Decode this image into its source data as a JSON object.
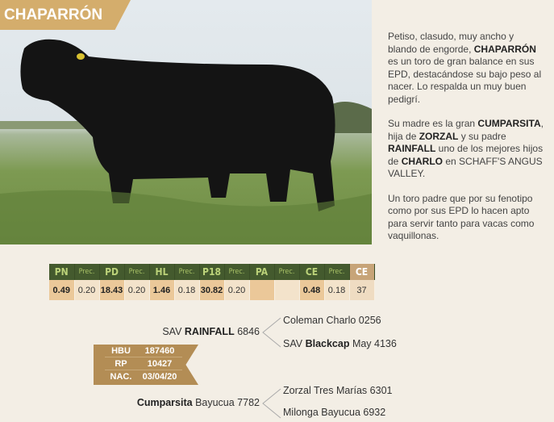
{
  "title": "CHAPARRÓN",
  "photo": {
    "subject": "bull-photo"
  },
  "description": [
    [
      {
        "t": "Petiso, clasudo, muy ancho y blando de engorde, "
      },
      {
        "t": "CHAPARRÓN",
        "b": true
      },
      {
        "t": " es un toro de gran balance en sus EPD, destacándose su bajo peso al nacer. Lo respalda un muy buen pedigrí."
      }
    ],
    [
      {
        "t": "Su madre es la gran "
      },
      {
        "t": "CUMPARSITA",
        "b": true
      },
      {
        "t": ", hija de "
      },
      {
        "t": "ZORZAL",
        "b": true
      },
      {
        "t": " y su padre "
      },
      {
        "t": "RAINFALL",
        "b": true
      },
      {
        "t": " uno de los mejores hijos de "
      },
      {
        "t": "CHARLO",
        "b": true
      },
      {
        "t": " en SCHAFF'S ANGUS VALLEY."
      }
    ],
    [
      {
        "t": "Un toro padre que por su fenotipo como por sus EPD lo hacen apto para servir tanto para vacas como vaquillonas."
      }
    ]
  ],
  "epd": {
    "headers": [
      "PN",
      "Prec.",
      "PD",
      "Prec.",
      "HL",
      "Prec.",
      "P18",
      "Prec.",
      "PA",
      "Prec.",
      "CE",
      "Prec.",
      "CE"
    ],
    "values": [
      "0.49",
      "0.20",
      "18.43",
      "0.20",
      "1.46",
      "0.18",
      "30.82",
      "0.20",
      "",
      "",
      "0.48",
      "0.18",
      "37"
    ]
  },
  "pedigree": {
    "sire": {
      "pre": "SAV ",
      "bold": "RAINFALL",
      "post": " 6846"
    },
    "sire_sire": {
      "pre": "Coleman Charlo 0256",
      "bold": "",
      "post": ""
    },
    "sire_dam": {
      "pre": "SAV ",
      "bold": "Blackcap",
      "post": " May 4136"
    },
    "dam": {
      "pre": "",
      "bold": "Cumparsita",
      "post": " Bayucua 7782"
    },
    "dam_sire": {
      "pre": "Zorzal Tres Marías 6301",
      "bold": "",
      "post": ""
    },
    "dam_dam": {
      "pre": "Milonga Bayucua 6932",
      "bold": "",
      "post": ""
    }
  },
  "registry": [
    {
      "k": "HBU",
      "v": "187460"
    },
    {
      "k": "RP",
      "v": "10427"
    },
    {
      "k": "NAC.",
      "v": "03/04/20"
    }
  ],
  "colors": {
    "gold": "#d4ad6c",
    "table_header": "#445a2e",
    "header_text": "#bcd37a"
  }
}
